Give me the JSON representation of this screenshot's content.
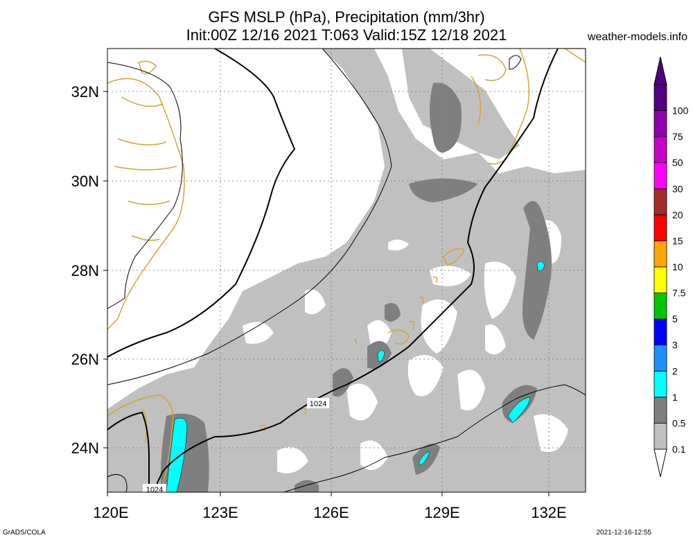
{
  "header": {
    "title_line1": "GFS MSLP (hPa), Precipitation (mm/3hr)",
    "title_line2": "Init:00Z 12/16 2021 T:063 Valid:15Z 12/18 2021",
    "site": "weather-models.info"
  },
  "footer": {
    "left": "GrADS/COLA",
    "right": "2021-12-16-12:55"
  },
  "axes": {
    "lon_labels": [
      "120E",
      "123E",
      "126E",
      "129E",
      "132E"
    ],
    "lat_labels": [
      "32N",
      "30N",
      "28N",
      "26N",
      "24N"
    ]
  },
  "isobar_labels": [
    "1024",
    "1024"
  ],
  "colorbar": {
    "levels": [
      "0.1",
      "0.5",
      "1",
      "2",
      "3",
      "5",
      "7.5",
      "10",
      "15",
      "20",
      "30",
      "50",
      "75",
      "100"
    ],
    "colors": [
      "#c0c0c0",
      "#7f7f7f",
      "#00ffff",
      "#1e90ff",
      "#0000ff",
      "#00c800",
      "#ffff00",
      "#ffa500",
      "#ff0000",
      "#a52a2a",
      "#ff00ff",
      "#c800c8",
      "#9000b0",
      "#500080"
    ]
  },
  "colors": {
    "light_precip": "#c0c0c0",
    "dark_precip": "#7f7f7f",
    "cyan_precip": "#00ffff",
    "coastline": "#d9a230",
    "isobar": "#000000",
    "grid": "#888888"
  }
}
